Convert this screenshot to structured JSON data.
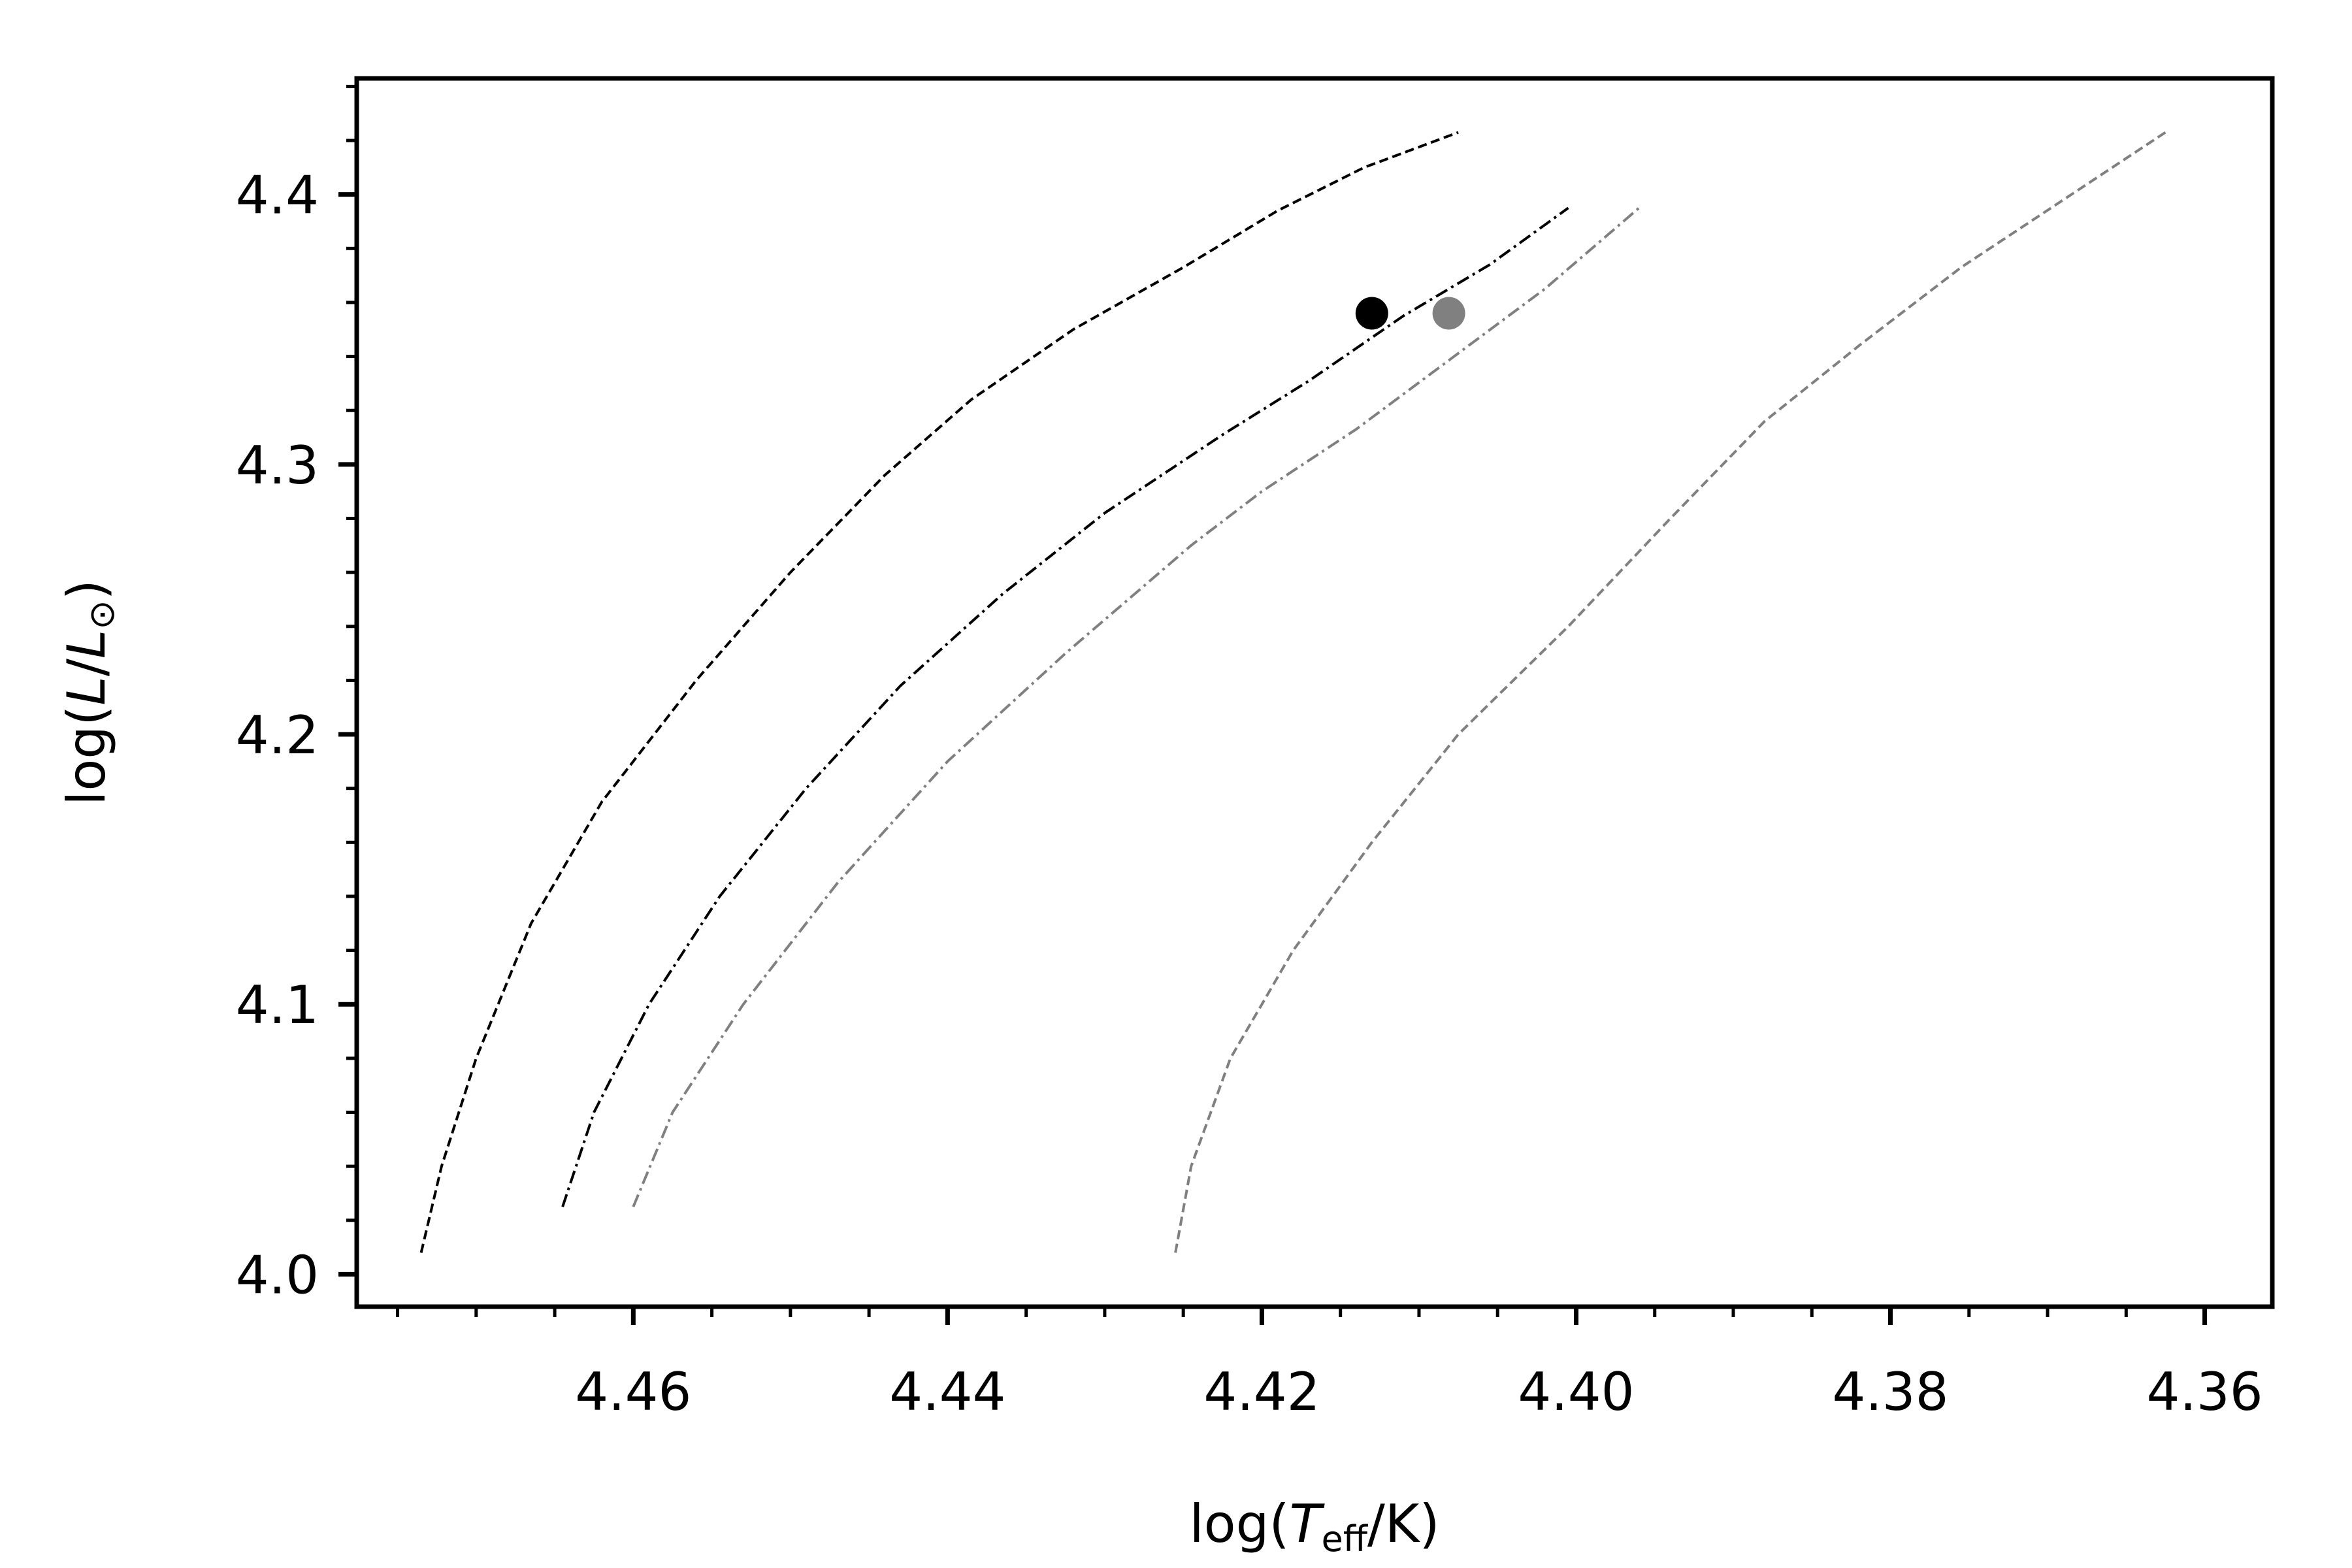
{
  "chart_data": {
    "type": "line",
    "title": "",
    "xlabel": {
      "prefix": "log(",
      "italic": "T",
      "sub": "eff",
      "suffix": "/K)"
    },
    "ylabel": {
      "prefix": "log(",
      "italic1": "L",
      "slash": "/",
      "italic2": "L",
      "sub": "⊙",
      "suffix": ")"
    },
    "x_inverted": true,
    "xlim": [
      4.4776,
      4.3557
    ],
    "ylim": [
      3.988,
      4.443
    ],
    "xticks": [
      4.46,
      4.44,
      4.42,
      4.4,
      4.38,
      4.36
    ],
    "xtick_labels": [
      "4.46",
      "4.44",
      "4.42",
      "4.40",
      "4.38",
      "4.36"
    ],
    "x_minor_step": 0.005,
    "yticks": [
      4.0,
      4.1,
      4.2,
      4.3,
      4.4
    ],
    "ytick_labels": [
      "4.0",
      "4.1",
      "4.2",
      "4.3",
      "4.4"
    ],
    "y_minor_step": 0.02,
    "grid": false,
    "legend": "none",
    "series": [
      {
        "color": "#000000",
        "dash": "dashed",
        "x": [
          4.4735,
          4.4722,
          4.47,
          4.4665,
          4.462,
          4.456,
          4.45,
          4.444,
          4.4385,
          4.432,
          4.425,
          4.419,
          4.4135,
          4.4075
        ],
        "y": [
          4.008,
          4.04,
          4.08,
          4.13,
          4.175,
          4.22,
          4.26,
          4.296,
          4.324,
          4.35,
          4.373,
          4.394,
          4.41,
          4.423
        ]
      },
      {
        "color": "#000000",
        "dash": "dashdot",
        "x": [
          4.4645,
          4.4625,
          4.459,
          4.4545,
          4.449,
          4.443,
          4.4365,
          4.43,
          4.4225,
          4.417,
          4.411,
          4.4055,
          4.4005
        ],
        "y": [
          4.025,
          4.06,
          4.1,
          4.14,
          4.18,
          4.218,
          4.252,
          4.282,
          4.311,
          4.331,
          4.355,
          4.374,
          4.395
        ]
      },
      {
        "color": "#808080",
        "dash": "dashdot",
        "x": [
          4.46,
          4.4575,
          4.453,
          4.447,
          4.44,
          4.4325,
          4.4245,
          4.42,
          4.414,
          4.408,
          4.402,
          4.396
        ],
        "y": [
          4.025,
          4.06,
          4.1,
          4.145,
          4.19,
          4.23,
          4.27,
          4.29,
          4.313,
          4.339,
          4.365,
          4.395
        ]
      },
      {
        "color": "#808080",
        "dash": "dashed",
        "x": [
          4.4255,
          4.4245,
          4.422,
          4.418,
          4.413,
          4.4075,
          4.4005,
          4.394,
          4.388,
          4.382,
          4.3755,
          4.369,
          4.3625
        ],
        "y": [
          4.008,
          4.04,
          4.08,
          4.12,
          4.16,
          4.2,
          4.24,
          4.28,
          4.316,
          4.344,
          4.373,
          4.398,
          4.423
        ]
      }
    ],
    "points": [
      {
        "x": 4.413,
        "y": 4.356,
        "color": "#000000"
      },
      {
        "x": 4.4081,
        "y": 4.356,
        "color": "#808080"
      }
    ]
  }
}
